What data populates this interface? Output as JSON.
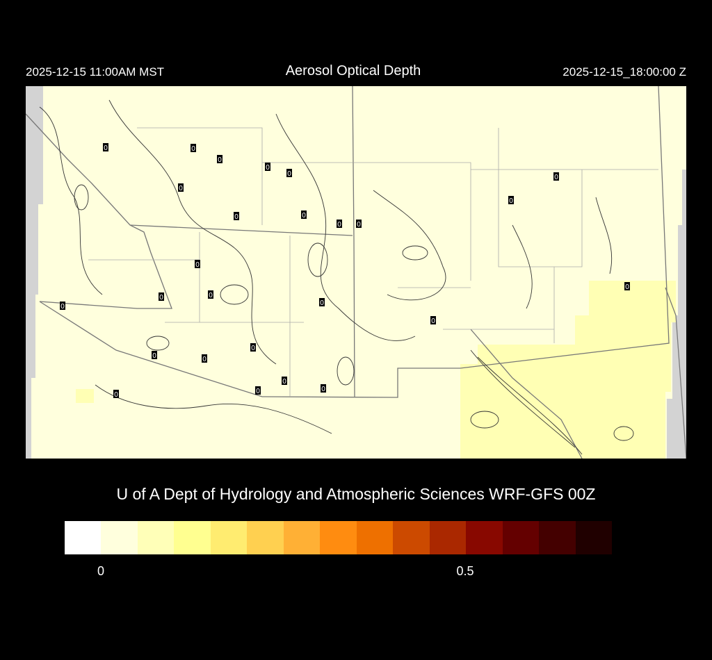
{
  "header": {
    "title": "Aerosol Optical Depth",
    "local_time": "2025-12-15 11:00AM MST",
    "valid_time": "2025-12-15_18:00:00 Z"
  },
  "map": {
    "field": "Aerosol Optical Depth",
    "background_color": "#ffffdd",
    "elevated_color": "#ffffb4",
    "no_data_color": "#d3d3d3",
    "contour_label": "0"
  },
  "credit": "U of A Dept of Hydrology and Atmospheric Sciences WRF-GFS 00Z",
  "colorbar": {
    "colors": [
      "#ffffff",
      "#ffffdd",
      "#ffffb8",
      "#ffff90",
      "#ffec70",
      "#ffd050",
      "#ffb035",
      "#ff8c10",
      "#ee7000",
      "#cc4a00",
      "#aa2800",
      "#880800",
      "#640000",
      "#440000",
      "#200000"
    ],
    "tick_labels": [
      "0",
      "0.5"
    ]
  }
}
